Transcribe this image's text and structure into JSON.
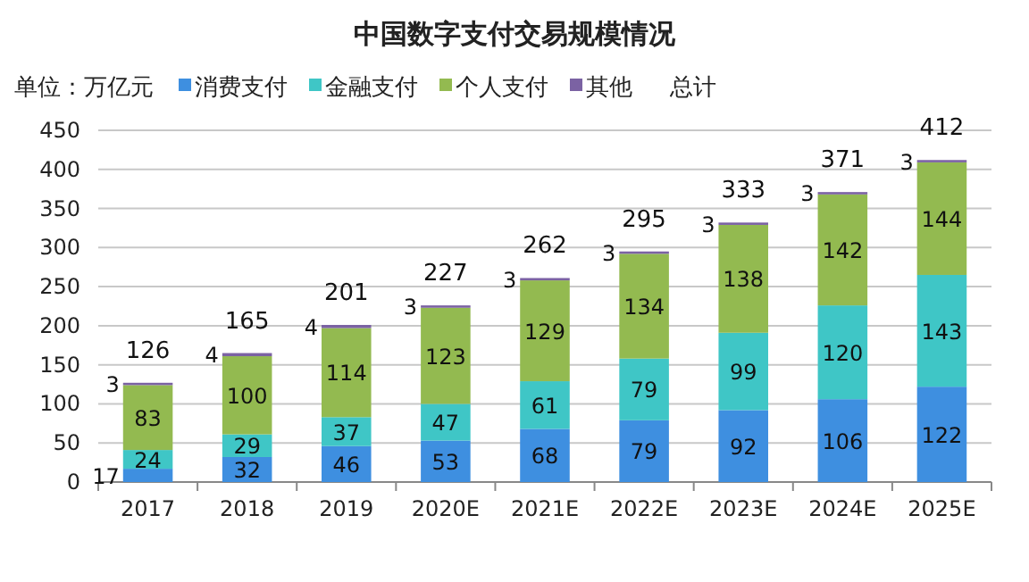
{
  "chart_data": {
    "type": "bar",
    "title": "中国数字支付交易规模情况",
    "ylabel": "单位：万亿元",
    "stacked": true,
    "categories": [
      "2017",
      "2018",
      "2019",
      "2020E",
      "2021E",
      "2022E",
      "2023E",
      "2024E",
      "2025E"
    ],
    "series": [
      {
        "name": "消费支付",
        "color": "#3e8fe0",
        "values": [
          17,
          32,
          46,
          53,
          68,
          79,
          92,
          106,
          122
        ]
      },
      {
        "name": "金融支付",
        "color": "#3fc6c6",
        "values": [
          24,
          29,
          37,
          47,
          61,
          79,
          99,
          120,
          143
        ]
      },
      {
        "name": "个人支付",
        "color": "#93ba50",
        "values": [
          83,
          100,
          114,
          123,
          129,
          134,
          138,
          142,
          144
        ]
      },
      {
        "name": "其他",
        "color": "#7b62a3",
        "values": [
          3,
          4,
          4,
          3,
          3,
          3,
          3,
          3,
          3
        ]
      }
    ],
    "totals": [
      "126",
      "165",
      "201",
      "227",
      "262",
      "295",
      "333",
      "371",
      "412"
    ],
    "annotations": [
      "总计"
    ],
    "ylim": [
      0,
      450
    ],
    "yticks": [
      0,
      50,
      100,
      150,
      200,
      250,
      300,
      350,
      400,
      450
    ],
    "grid": "y",
    "legend": "top",
    "data_labels": true
  }
}
